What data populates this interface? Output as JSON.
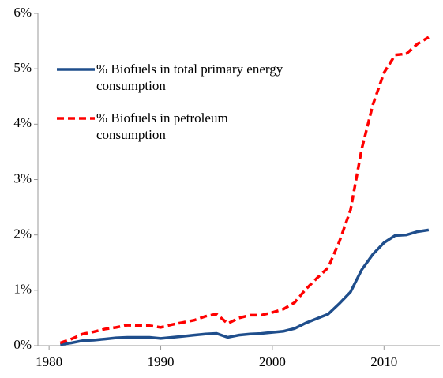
{
  "chart_data": {
    "type": "line",
    "x": [
      1981,
      1982,
      1983,
      1984,
      1985,
      1986,
      1987,
      1988,
      1989,
      1990,
      1991,
      1992,
      1993,
      1994,
      1995,
      1996,
      1997,
      1998,
      1999,
      2000,
      2001,
      2002,
      2003,
      2004,
      2005,
      2006,
      2007,
      2008,
      2009,
      2010,
      2011,
      2012,
      2013,
      2014
    ],
    "series": [
      {
        "name": "% Biofuels in total primary energy consumption",
        "color": "#1f4e8c",
        "dash": false,
        "values": [
          0.02,
          0.05,
          0.09,
          0.1,
          0.12,
          0.14,
          0.15,
          0.15,
          0.15,
          0.13,
          0.15,
          0.17,
          0.19,
          0.21,
          0.22,
          0.15,
          0.19,
          0.21,
          0.22,
          0.24,
          0.26,
          0.31,
          0.41,
          0.49,
          0.57,
          0.76,
          0.97,
          1.37,
          1.65,
          1.86,
          1.99,
          2.0,
          2.06,
          2.09
        ]
      },
      {
        "name": "% Biofuels in petroleum consumption",
        "color": "#ff0000",
        "dash": true,
        "values": [
          0.05,
          0.12,
          0.21,
          0.25,
          0.3,
          0.33,
          0.37,
          0.36,
          0.36,
          0.33,
          0.38,
          0.42,
          0.46,
          0.53,
          0.57,
          0.4,
          0.5,
          0.55,
          0.55,
          0.6,
          0.66,
          0.78,
          1.02,
          1.22,
          1.41,
          1.88,
          2.45,
          3.55,
          4.35,
          4.93,
          5.25,
          5.27,
          5.45,
          5.57
        ]
      }
    ],
    "xlim": [
      1979,
      2015
    ],
    "xticks": [
      1980,
      1990,
      2000,
      2010
    ],
    "ylim": [
      0,
      6
    ],
    "yticks": [
      {
        "value": 0,
        "label": "0%"
      },
      {
        "value": 1,
        "label": "1%"
      },
      {
        "value": 2,
        "label": "2%"
      },
      {
        "value": 3,
        "label": "3%"
      },
      {
        "value": 4,
        "label": "4%"
      },
      {
        "value": 5,
        "label": "5%"
      },
      {
        "value": 6,
        "label": "6%"
      }
    ],
    "grid": false,
    "legend": "upper-left"
  }
}
